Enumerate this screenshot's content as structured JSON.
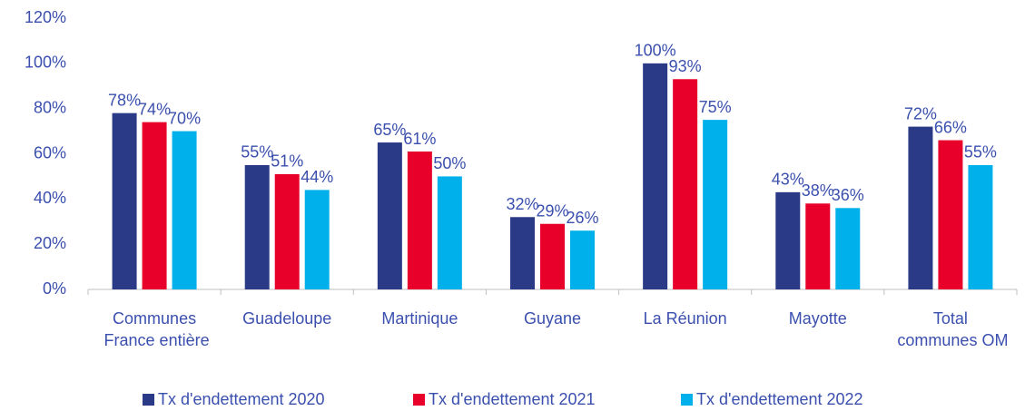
{
  "chart_data": {
    "type": "bar",
    "categories": [
      "Communes France entière",
      "Guadeloupe",
      "Martinique",
      "Guyane",
      "La Réunion",
      "Mayotte",
      "Total communes OM"
    ],
    "series": [
      {
        "name": "Tx d'endettement 2020",
        "color": "#2b3a87",
        "values": [
          78,
          55,
          65,
          32,
          100,
          43,
          72
        ],
        "value_labels": [
          "78%",
          "55%",
          "65%",
          "32%",
          "100%",
          "43%",
          "72%"
        ]
      },
      {
        "name": "Tx d'endettement 2021",
        "color": "#e8002b",
        "values": [
          74,
          51,
          61,
          29,
          93,
          38,
          66
        ],
        "value_labels": [
          "74%",
          "51%",
          "61%",
          "29%",
          "93%",
          "38%",
          "66%"
        ]
      },
      {
        "name": "Tx d'endettement 2022",
        "color": "#00b0ea",
        "values": [
          70,
          44,
          50,
          26,
          75,
          36,
          55
        ],
        "value_labels": [
          "70%",
          "44%",
          "50%",
          "26%",
          "75%",
          "36%",
          "55%"
        ]
      }
    ],
    "ylim": [
      0,
      120
    ],
    "yticks": [
      {
        "value": 0,
        "label": "0%"
      },
      {
        "value": 20,
        "label": "20%"
      },
      {
        "value": 40,
        "label": "40%"
      },
      {
        "value": 60,
        "label": "60%"
      },
      {
        "value": 80,
        "label": "80%"
      },
      {
        "value": 100,
        "label": "100%"
      },
      {
        "value": 120,
        "label": "120%"
      }
    ],
    "grid": false,
    "legend": "bottom"
  }
}
